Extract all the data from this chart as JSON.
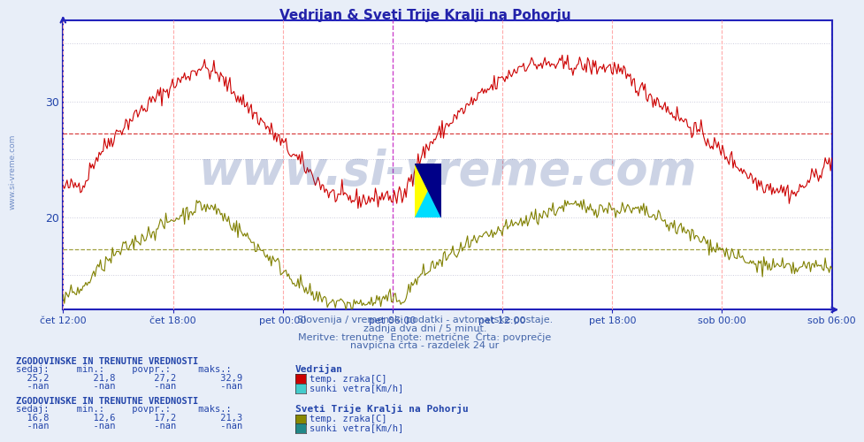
{
  "title": "Vedrijan & Sveti Trije Kralji na Pohorju",
  "title_color": "#2222aa",
  "title_fontsize": 11,
  "bg_color": "#e8eef8",
  "plot_bg_color": "#ffffff",
  "border_color": "#2222bb",
  "grid_h_color": "#ddddee",
  "vline_color": "#ffaaaa",
  "special_vline_color": "#cc44cc",
  "x_tick_labels": [
    "čet 12:00",
    "čet 18:00",
    "pet 00:00",
    "pet 06:00",
    "pet 12:00",
    "pet 18:00",
    "sob 00:00",
    "sob 06:00"
  ],
  "x_tick_positions": [
    0,
    72,
    144,
    216,
    288,
    360,
    432,
    504
  ],
  "special_vline_pos": 216,
  "xlim": [
    0,
    504
  ],
  "ylim": [
    12,
    37
  ],
  "ytick_pos": [
    15,
    20,
    25,
    30,
    35
  ],
  "ytick_labels": [
    "",
    "20",
    "",
    "30",
    ""
  ],
  "line1_color": "#cc0000",
  "line2_color": "#808000",
  "avg1": 27.2,
  "avg2": 17.2,
  "station1": "Vedrijan",
  "station2": "Sveti Trije Kralji na Pohorju",
  "stats1_sedaj": "25,2",
  "stats1_min": "21,8",
  "stats1_povpr": "27,2",
  "stats1_maks": "32,9",
  "stats2_sedaj": "16,8",
  "stats2_min": "12,6",
  "stats2_povpr": "17,2",
  "stats2_maks": "21,3",
  "subtitle1": "Slovenija / vremenski podatki - avtomatske postaje.",
  "subtitle2": "zadnja dva dni / 5 minut.",
  "subtitle3": "Meritve: trenutne  Enote: metrične  Črta: povprečje",
  "subtitle4": "navpična črta - razdelek 24 ur",
  "watermark": "www.si-vreme.com",
  "watermark_color": "#1a3a8a",
  "logo_yellow": "#ffff00",
  "logo_cyan": "#00ddff",
  "logo_dark": "#000088",
  "tick_color": "#2244aa",
  "stat_color": "#2244aa",
  "stat_bold_color": "#2244aa",
  "swatch1_color": "#cc0000",
  "swatch2_color": "#44cccc",
  "swatch3_color": "#888800",
  "swatch4_color": "#228888",
  "n_points": 577
}
